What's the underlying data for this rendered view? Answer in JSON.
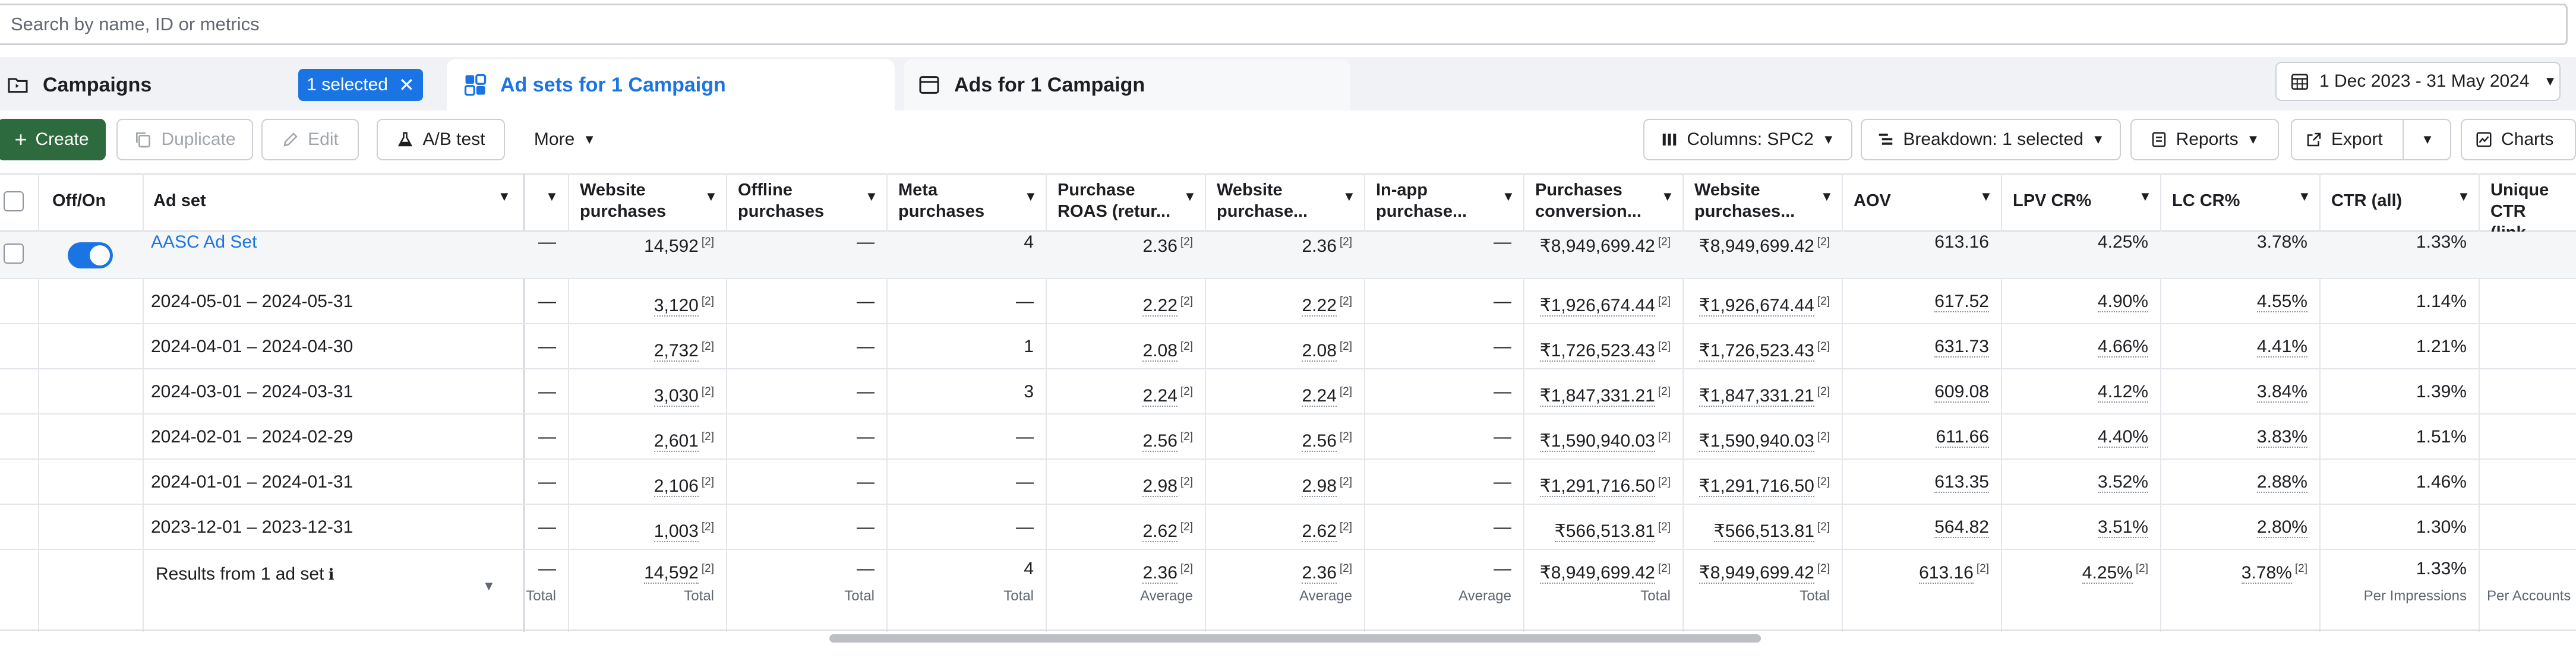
{
  "search": {
    "placeholder": "Search by name, ID or metrics"
  },
  "tabs": {
    "campaigns": "Campaigns",
    "selected_chip": "1 selected",
    "adsets": "Ad sets for 1 Campaign",
    "ads": "Ads for 1 Campaign"
  },
  "date_range": "1 Dec 2023 - 31 May 2024",
  "toolbar": {
    "create": "Create",
    "duplicate": "Duplicate",
    "edit": "Edit",
    "ab_test": "A/B test",
    "more": "More",
    "columns": "Columns: SPC2",
    "breakdown": "Breakdown: 1 selected",
    "reports": "Reports",
    "export": "Export",
    "charts": "Charts"
  },
  "headers": {
    "offon": "Off/On",
    "adset": "Ad set",
    "website_purchases": [
      "Website",
      "purchases"
    ],
    "offline_purchases": [
      "Offline",
      "purchases"
    ],
    "meta_purchases": [
      "Meta",
      "purchases"
    ],
    "purchase_roas": [
      "Purchase",
      "ROAS (retur..."
    ],
    "website_purchase_roas": [
      "Website",
      "purchase..."
    ],
    "inapp_purchase": [
      "In-app",
      "purchase..."
    ],
    "purchases_conversion": [
      "Purchases",
      "conversion..."
    ],
    "website_purchases_value": [
      "Website",
      "purchases..."
    ],
    "aov": "AOV",
    "lpv_cr": "LPV CR%",
    "lc_cr": "LC CR%",
    "ctr_all": "CTR (all)",
    "unique_ctr": [
      "Unique CTR",
      "(link click-..."
    ]
  },
  "sup_mark": "[2]",
  "dash": "—",
  "rows": [
    {
      "name": "AASC Ad Set",
      "c0": "—",
      "wp": "14,592",
      "op": "—",
      "mp": "4",
      "roas": "2.36",
      "wroas": "2.36",
      "inapp": "—",
      "conv": "₹8,949,699.42",
      "wpv": "₹8,949,699.42",
      "aov": "613.16",
      "lpv": "4.25%",
      "lc": "3.78%",
      "ctr": "1.33%"
    },
    {
      "name": "2024-05-01 – 2024-05-31",
      "c0": "—",
      "wp": "3,120",
      "op": "—",
      "mp": "—",
      "roas": "2.22",
      "wroas": "2.22",
      "inapp": "—",
      "conv": "₹1,926,674.44",
      "wpv": "₹1,926,674.44",
      "aov": "617.52",
      "lpv": "4.90%",
      "lc": "4.55%",
      "ctr": "1.14%"
    },
    {
      "name": "2024-04-01 – 2024-04-30",
      "c0": "—",
      "wp": "2,732",
      "op": "—",
      "mp": "1",
      "roas": "2.08",
      "wroas": "2.08",
      "inapp": "—",
      "conv": "₹1,726,523.43",
      "wpv": "₹1,726,523.43",
      "aov": "631.73",
      "lpv": "4.66%",
      "lc": "4.41%",
      "ctr": "1.21%"
    },
    {
      "name": "2024-03-01 – 2024-03-31",
      "c0": "—",
      "wp": "3,030",
      "op": "—",
      "mp": "3",
      "roas": "2.24",
      "wroas": "2.24",
      "inapp": "—",
      "conv": "₹1,847,331.21",
      "wpv": "₹1,847,331.21",
      "aov": "609.08",
      "lpv": "4.12%",
      "lc": "3.84%",
      "ctr": "1.39%"
    },
    {
      "name": "2024-02-01 – 2024-02-29",
      "c0": "—",
      "wp": "2,601",
      "op": "—",
      "mp": "—",
      "roas": "2.56",
      "wroas": "2.56",
      "inapp": "—",
      "conv": "₹1,590,940.03",
      "wpv": "₹1,590,940.03",
      "aov": "611.66",
      "lpv": "4.40%",
      "lc": "3.83%",
      "ctr": "1.51%"
    },
    {
      "name": "2024-01-01 – 2024-01-31",
      "c0": "—",
      "wp": "2,106",
      "op": "—",
      "mp": "—",
      "roas": "2.98",
      "wroas": "2.98",
      "inapp": "—",
      "conv": "₹1,291,716.50",
      "wpv": "₹1,291,716.50",
      "aov": "613.35",
      "lpv": "3.52%",
      "lc": "2.88%",
      "ctr": "1.46%"
    },
    {
      "name": "2023-12-01 – 2023-12-31",
      "c0": "—",
      "wp": "1,003",
      "op": "—",
      "mp": "—",
      "roas": "2.62",
      "wroas": "2.62",
      "inapp": "—",
      "conv": "₹566,513.81",
      "wpv": "₹566,513.81",
      "aov": "564.82",
      "lpv": "3.51%",
      "lc": "2.80%",
      "ctr": "1.30%"
    }
  ],
  "totals": {
    "label": "Results from 1 ad set",
    "c0": "—",
    "wp": "14,592",
    "op": "—",
    "mp": "4",
    "roas": "2.36",
    "wroas": "2.36",
    "inapp": "—",
    "conv": "₹8,949,699.42",
    "wpv": "₹8,949,699.42",
    "aov": "613.16",
    "lpv": "4.25%",
    "lc": "3.78%",
    "ctr": "1.33%",
    "sub_total": "Total",
    "sub_average": "Average",
    "sub_per_impressions": "Per Impressions",
    "sub_per_accounts": "Per Accounts"
  }
}
